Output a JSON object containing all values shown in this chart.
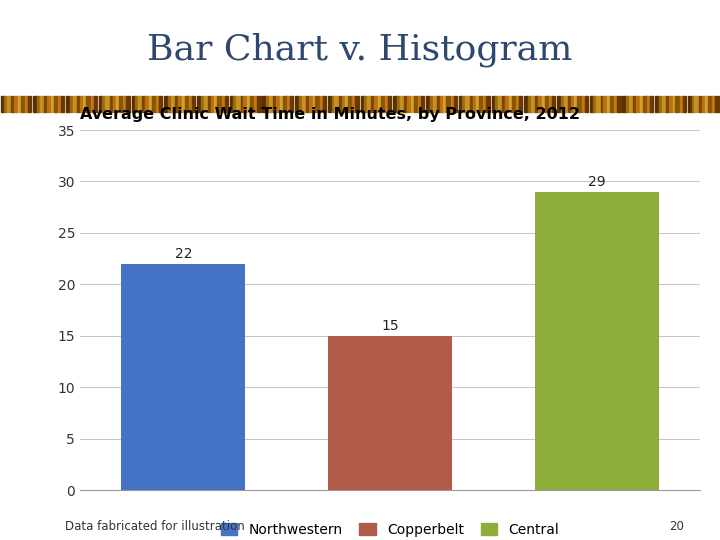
{
  "slide_title": "Bar Chart v. Histogram",
  "chart_title": "Average Clinic Wait Time in Minutes, by Province, 2012",
  "categories": [
    "Northwestern",
    "Copperbelt",
    "Central"
  ],
  "values": [
    22,
    15,
    29
  ],
  "bar_colors": [
    "#4472C4",
    "#B05A4A",
    "#8EAD3B"
  ],
  "ylim": [
    0,
    35
  ],
  "yticks": [
    0,
    5,
    10,
    15,
    20,
    25,
    30,
    35
  ],
  "footnote": "Data fabricated for illustration",
  "page_number": "20",
  "slide_title_color": "#2E4770",
  "chart_title_color": "#000000",
  "background_color": "#FFFFFF",
  "stripe_bg_color": "#2E3B7A",
  "value_label_fontsize": 10,
  "chart_title_fontsize": 11.5,
  "slide_title_fontsize": 26,
  "tick_label_fontsize": 10,
  "legend_fontsize": 10,
  "footnote_fontsize": 8.5
}
